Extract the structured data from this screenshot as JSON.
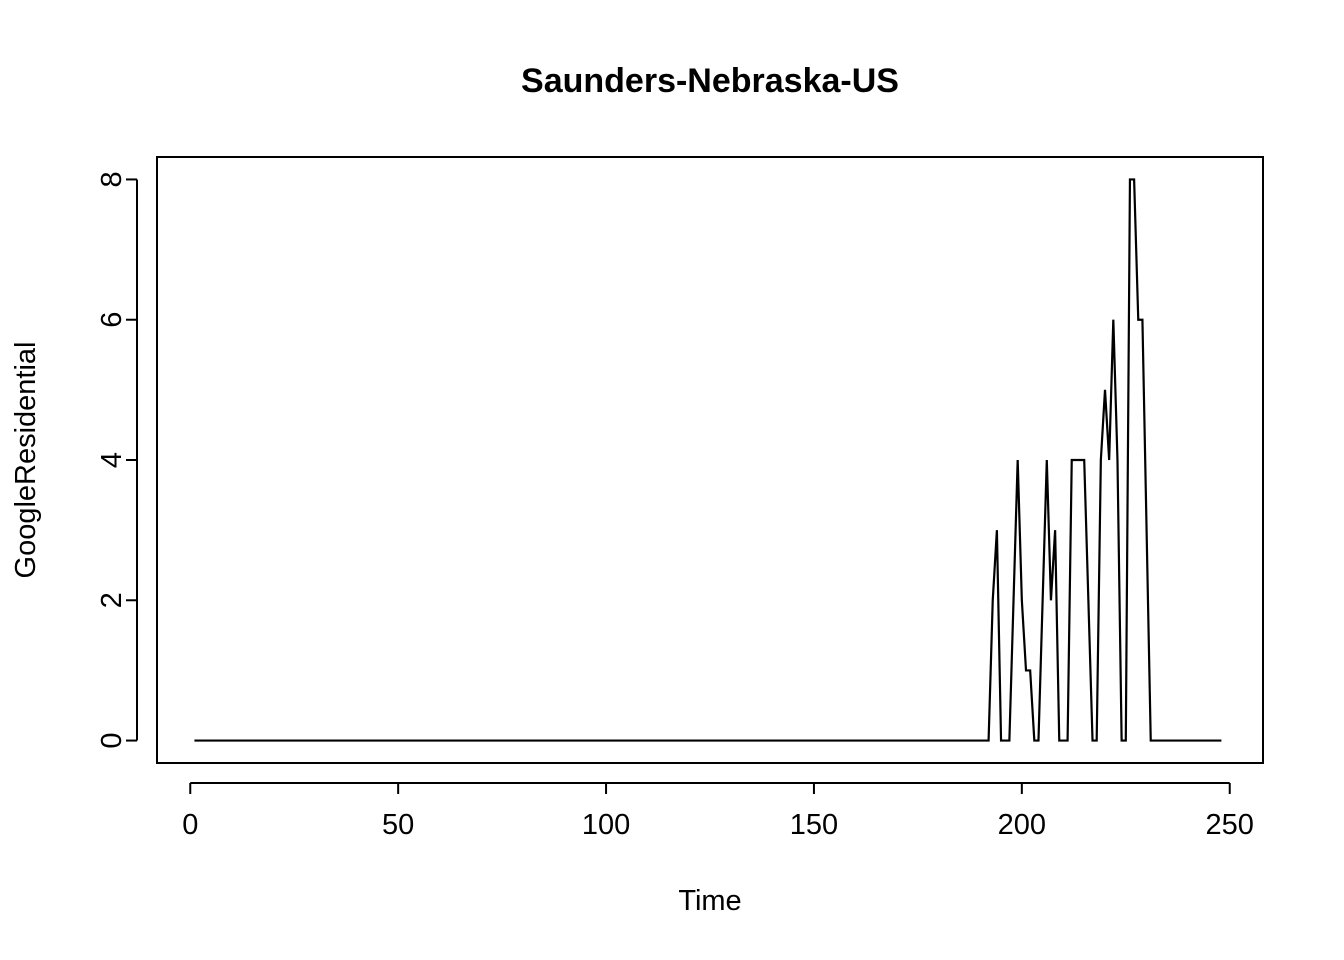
{
  "chart_data": {
    "type": "line",
    "title": "Saunders-Nebraska-US",
    "xlabel": "Time",
    "ylabel": "GoogleResidential",
    "xlim": [
      -8,
      258
    ],
    "ylim": [
      -0.32,
      8.32
    ],
    "x_ticks": [
      0,
      50,
      100,
      150,
      200,
      250
    ],
    "y_ticks": [
      0,
      2,
      4,
      6,
      8
    ],
    "x_tick_labels": [
      "0",
      "50",
      "100",
      "150",
      "200",
      "250"
    ],
    "y_tick_labels": [
      "0",
      "2",
      "4",
      "6",
      "8"
    ],
    "grid": false,
    "legend": "none",
    "series": [
      {
        "name": "GoogleResidential",
        "x": [
          1,
          192,
          193,
          194,
          195,
          196,
          197,
          198,
          199,
          200,
          201,
          202,
          203,
          204,
          205,
          206,
          207,
          208,
          209,
          210,
          211,
          212,
          213,
          214,
          215,
          216,
          217,
          218,
          219,
          220,
          221,
          222,
          223,
          224,
          225,
          226,
          227,
          228,
          229,
          230,
          231,
          248
        ],
        "values": [
          0,
          0,
          2,
          3,
          0,
          0,
          0,
          2,
          4,
          2,
          1,
          1,
          0,
          0,
          2,
          4,
          2,
          3,
          0,
          0,
          0,
          4,
          4,
          4,
          4,
          2,
          0,
          0,
          4,
          5,
          4,
          6,
          4,
          0,
          0,
          8,
          8,
          6,
          6,
          3,
          0,
          0
        ]
      }
    ]
  }
}
